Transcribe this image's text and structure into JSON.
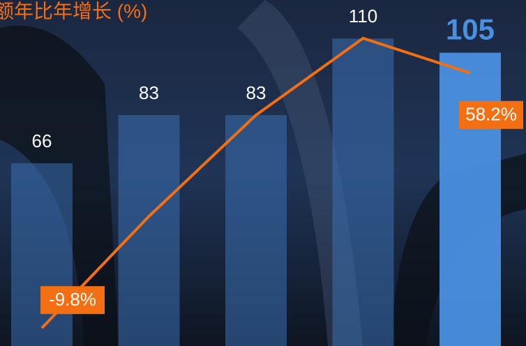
{
  "chart_data": {
    "type": "bar",
    "title": "额年比年增长 (%)",
    "categories": [
      null,
      null,
      null,
      null,
      null
    ],
    "ylim": [
      1.5,
      123.6
    ],
    "y2lim": [
      -14.6,
      77.7
    ],
    "series": [
      {
        "type": "bar",
        "colors": [
          "#3a6fb0",
          "#3a6fb0",
          "#3a6fb0",
          "#3a6fb0",
          "#4a90e0"
        ],
        "values": [
          66,
          83,
          83,
          110,
          105
        ]
      },
      {
        "type": "line",
        "axis": "y2",
        "color": "#f36f12",
        "values": [
          -9.8,
          20,
          47,
          67.5,
          58.2
        ],
        "value_labels": [
          "-9.8%",
          null,
          null,
          null,
          "58.2%"
        ]
      }
    ]
  }
}
